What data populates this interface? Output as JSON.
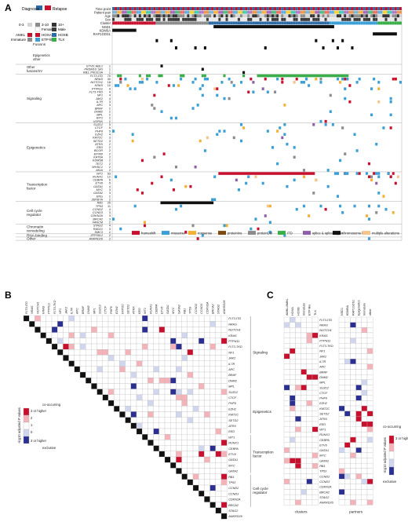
{
  "panels": {
    "a": "A",
    "b": "B",
    "c": "C"
  },
  "colors": {
    "frameshift": "#c8102e",
    "missense": "#3a9fd6",
    "nonsense": "#f2b134",
    "proteinIns": "#7b4a12",
    "proteinDel": "#8c8c8c",
    "ITD": "#3aae49",
    "splice": "#8e5fa8",
    "chromosome_loss": "#111111",
    "multiple": "#f4c48a",
    "diagnosis": "#2d6aa3",
    "relapse": "#c8102e",
    "cooccur": "#c8102e",
    "exclusive": "#2b2f8f"
  },
  "panelA": {
    "top_legend": {
      "diagnosis": "Diagnosis",
      "relapse": "Relapse",
      "age_0_3": "0-3",
      "age_3_10": "3-10",
      "age_10plus": "10+",
      "female": "Female",
      "male": "Male",
      "amkl": "AMKL",
      "hoxa": "HOXA",
      "hoxb": "HOXB",
      "immature": "Immature",
      "etp": "ETP-like",
      "tlx": "TLX"
    },
    "track_labels": [
      "Time point",
      "Patient pair",
      "Age",
      "Sex",
      "Cluster",
      "NSD1",
      "KDM5A",
      "RAP1GDS1"
    ],
    "fusion_label": "Fusions",
    "fusion_rows": [
      "NSD1",
      "KDM5A",
      "RAP1GDS1"
    ],
    "epi_other_label": "Epigenetics\nother",
    "other_fusions_label": "Other\nfusions/SV",
    "other_fusions": [
      "ETV6::ABL1",
      "PRDM16::SKI",
      "RB1::PIK3C3A"
    ],
    "groups": [
      {
        "name": "Signaling",
        "genes": [
          "FLT3-ITD",
          "NRAS",
          "NOTCH1",
          "KRAS",
          "PTPN11",
          "FLT3-TKD",
          "NF1",
          "JAK2",
          "IL7R",
          "APC",
          "BRAF",
          "DNM2",
          "MPL",
          "RIT1",
          "USP9X"
        ],
        "counts": [
          "70",
          "30",
          "18",
          "10",
          "9",
          "4",
          "4",
          "4",
          "3",
          "3",
          "2",
          "2",
          "2",
          "2",
          "2"
        ]
      },
      {
        "name": "Epigenetics",
        "genes": [
          "SUZ12",
          "CTCF",
          "PHF6",
          "EZH2",
          "KMT2C",
          "SETD2",
          "ATRX",
          "EED",
          "BCOR",
          "EP300",
          "KAT6A",
          "KDM5B",
          "TET2",
          "WHSC1",
          "MGA"
        ],
        "counts": [
          "5",
          "5",
          "5",
          "4",
          "3",
          "3",
          "2",
          "2",
          "2",
          "2",
          "2",
          "2",
          "2",
          "2",
          "2"
        ]
      },
      {
        "name": "Transcription\nfactor",
        "genes": [
          "WT1",
          "RUNX1",
          "CEBPA",
          "ETV6",
          "GATA1",
          "MYC",
          "GATA2",
          "ERG",
          "ZBTB7A"
        ],
        "counts": [
          "53",
          "12",
          "6",
          "5",
          "4",
          "3",
          "3",
          "2",
          "2"
        ]
      },
      {
        "name": "Cell cycle\nregulator",
        "genes": [
          "RB1",
          "TP53",
          "CCND2",
          "CCND3",
          "CDKN2A",
          "BRCA2",
          "FANCM"
        ],
        "counts": [
          "25",
          "11",
          "4",
          "3",
          "3",
          "3",
          "2"
        ]
      },
      {
        "name": "Chromatin\nremodeling",
        "genes": [
          "STAG2",
          "RAD21",
          "SMC3"
        ],
        "counts": [
          "4",
          "3",
          "2"
        ]
      },
      {
        "name": "RNA-binding",
        "genes": [
          "ZFP36L2"
        ],
        "counts": [
          "2"
        ]
      },
      {
        "name": "Other",
        "genes": [
          "ANKRD26"
        ],
        "counts": [
          "2"
        ]
      }
    ],
    "legend": [
      "frameshift",
      "missense",
      "nonsense",
      "proteinIns",
      "proteinDel",
      "ITD",
      "splice & splice region",
      "chromosome loss",
      "multiple alterations"
    ]
  },
  "panelB": {
    "genes": [
      "FLT3-ITD",
      "NRAS",
      "NOTCH1",
      "KRAS",
      "PTPN11",
      "FLT3-TKD",
      "NF1",
      "JAK2",
      "IL7R",
      "APC",
      "BRAF",
      "DNM2",
      "MPL",
      "SUZ12",
      "CTCF",
      "PHF6",
      "EZH2",
      "KMT2C",
      "SETD2",
      "ATRX",
      "EED",
      "WT1",
      "RUNX1",
      "CEBPA",
      "ETV6",
      "GATA1",
      "MYC",
      "GATA2",
      "RB1",
      "TP53",
      "CCND2",
      "CCND3",
      "CDKN2A",
      "BRCA2",
      "STAG2",
      "ANKRD26"
    ],
    "groups": [
      "Signaling",
      "Epigenetics",
      "Transcription\nfactor",
      "Cell cycle\nregulator"
    ],
    "legend_top": "co-occurring",
    "legend_3": "3 or higher",
    "legend_2": "2",
    "legend_1": "1",
    "legend_0": "0",
    "legend_neg": "3 or higher",
    "legend_bottom": "exclusive",
    "legend_axis": "-log10 adjusted P values"
  },
  "panelC": {
    "cluster_cols": [
      "AMKL/AMKL",
      "HOXA",
      "HOXB",
      "Immature",
      "ETP-like",
      "TLX"
    ],
    "partner_cols": [
      "NSD1",
      "KDM5A",
      "RAP1GDS1",
      "Epigenetics",
      "Immature",
      "other"
    ],
    "genes": [
      "FLT3-ITD",
      "NRAS",
      "NOTCH1",
      "KRAS",
      "PTPN11",
      "FLT3-TKD",
      "NF1",
      "JAK2",
      "IL7R",
      "APC",
      "BRAF",
      "DNM2",
      "MPL",
      "SUZ12",
      "CTCF",
      "PHF6",
      "EZH2",
      "KMT2C",
      "SETD2",
      "ATRX",
      "EED",
      "WT1",
      "RUNX1",
      "CEBPA",
      "ETV6",
      "GATA1",
      "MYC",
      "GATA2",
      "RB1",
      "TP53",
      "CCND2",
      "CCND3",
      "CDKN2A",
      "BRCA2",
      "STAG2",
      "ANKRD26"
    ],
    "xlabel_clusters": "clusters",
    "xlabel_partners": "partners",
    "legend_top": "co-occurring",
    "legend_3": "3 or higher",
    "legend_bottom": "exclusive",
    "legend_axis": "-log10 adjusted P values"
  }
}
